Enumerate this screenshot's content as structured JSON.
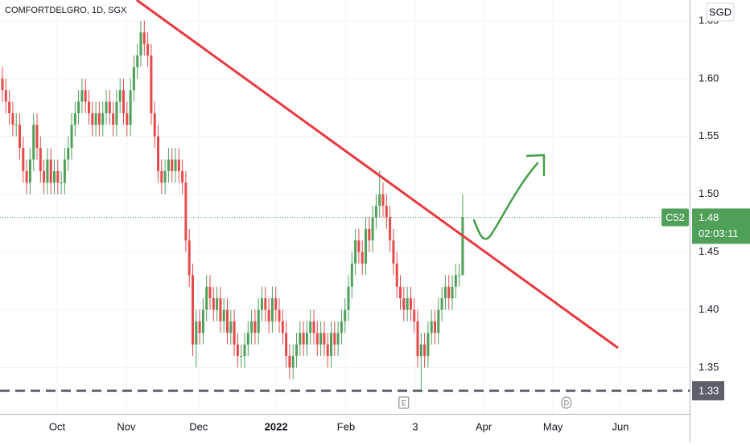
{
  "chart_data": {
    "type": "candlestick",
    "title": "COMFORTDELGRO, 1D, SGX",
    "currency": "SGD",
    "ticker_label": "C52",
    "countdown": "02:03:11",
    "up_color": "#50a05a",
    "down_color": "#e54b4b",
    "grid": true,
    "xlim": [
      -0.7,
      198.6
    ],
    "ylim": [
      1.31,
      1.668
    ],
    "yticks": [
      1.35,
      {
        "value": 1.4,
        "label": "1.40"
      },
      1.45,
      {
        "value": 1.5,
        "label": "1.50"
      },
      1.55,
      {
        "value": 1.6,
        "label": "1.60"
      },
      1.65
    ],
    "xticks": [
      {
        "value": 15.8,
        "label": "Oct"
      },
      {
        "value": 35.8,
        "label": "Nov"
      },
      {
        "value": 56.7,
        "label": "Dec"
      },
      {
        "value": 79.1,
        "label": "2022"
      },
      {
        "value": 99.3,
        "label": "Feb"
      },
      {
        "value": 119.3,
        "label": "3"
      },
      {
        "value": 139.1,
        "label": "Apr"
      },
      {
        "value": 159.1,
        "label": "May"
      },
      {
        "value": 178.6,
        "label": "Jun"
      }
    ],
    "open": [
      1.6,
      1.59,
      1.58,
      1.57,
      1.56,
      1.56,
      1.54,
      1.52,
      1.51,
      1.53,
      1.56,
      1.54,
      1.52,
      1.51,
      1.53,
      1.51,
      1.52,
      1.51,
      1.51,
      1.53,
      1.54,
      1.56,
      1.57,
      1.58,
      1.59,
      1.58,
      1.57,
      1.56,
      1.57,
      1.56,
      1.57,
      1.58,
      1.57,
      1.56,
      1.58,
      1.59,
      1.57,
      1.56,
      1.59,
      1.61,
      1.62,
      1.64,
      1.63,
      1.62,
      1.57,
      1.55,
      1.52,
      1.51,
      1.52,
      1.53,
      1.52,
      1.53,
      1.52,
      1.51,
      1.46,
      1.43,
      1.37,
      1.39,
      1.38,
      1.4,
      1.42,
      1.41,
      1.4,
      1.41,
      1.39,
      1.4,
      1.38,
      1.39,
      1.37,
      1.36,
      1.36,
      1.37,
      1.38,
      1.39,
      1.38,
      1.4,
      1.41,
      1.4,
      1.39,
      1.41,
      1.4,
      1.39,
      1.38,
      1.36,
      1.35,
      1.36,
      1.37,
      1.38,
      1.37,
      1.38,
      1.39,
      1.38,
      1.37,
      1.38,
      1.37,
      1.36,
      1.38,
      1.37,
      1.38,
      1.39,
      1.4,
      1.42,
      1.44,
      1.46,
      1.45,
      1.44,
      1.47,
      1.46,
      1.48,
      1.49,
      1.5,
      1.49,
      1.48,
      1.46,
      1.44,
      1.42,
      1.41,
      1.4,
      1.41,
      1.4,
      1.39,
      1.36,
      1.37,
      1.36,
      1.38,
      1.39,
      1.38,
      1.4,
      1.41,
      1.42,
      1.41,
      1.42,
      1.43,
      1.43
    ],
    "high": [
      1.61,
      1.6,
      1.59,
      1.58,
      1.57,
      1.57,
      1.55,
      1.53,
      1.54,
      1.57,
      1.57,
      1.55,
      1.53,
      1.54,
      1.54,
      1.53,
      1.53,
      1.52,
      1.54,
      1.55,
      1.57,
      1.58,
      1.59,
      1.6,
      1.6,
      1.59,
      1.58,
      1.58,
      1.58,
      1.58,
      1.59,
      1.59,
      1.58,
      1.59,
      1.6,
      1.6,
      1.58,
      1.6,
      1.62,
      1.63,
      1.65,
      1.65,
      1.64,
      1.63,
      1.58,
      1.56,
      1.53,
      1.53,
      1.54,
      1.54,
      1.54,
      1.54,
      1.53,
      1.52,
      1.47,
      1.44,
      1.4,
      1.4,
      1.41,
      1.43,
      1.43,
      1.42,
      1.42,
      1.42,
      1.41,
      1.41,
      1.4,
      1.4,
      1.38,
      1.37,
      1.38,
      1.39,
      1.4,
      1.4,
      1.41,
      1.42,
      1.42,
      1.41,
      1.42,
      1.42,
      1.41,
      1.4,
      1.39,
      1.37,
      1.37,
      1.38,
      1.39,
      1.39,
      1.39,
      1.4,
      1.4,
      1.39,
      1.39,
      1.39,
      1.38,
      1.39,
      1.39,
      1.39,
      1.4,
      1.41,
      1.43,
      1.45,
      1.47,
      1.47,
      1.46,
      1.48,
      1.48,
      1.49,
      1.5,
      1.52,
      1.51,
      1.5,
      1.49,
      1.47,
      1.45,
      1.43,
      1.42,
      1.42,
      1.42,
      1.41,
      1.4,
      1.38,
      1.38,
      1.39,
      1.4,
      1.4,
      1.41,
      1.42,
      1.43,
      1.43,
      1.43,
      1.44,
      1.44,
      1.5
    ],
    "low": [
      1.58,
      1.57,
      1.56,
      1.55,
      1.55,
      1.53,
      1.51,
      1.5,
      1.5,
      1.52,
      1.53,
      1.51,
      1.5,
      1.5,
      1.5,
      1.5,
      1.5,
      1.5,
      1.5,
      1.52,
      1.53,
      1.55,
      1.56,
      1.57,
      1.57,
      1.56,
      1.55,
      1.55,
      1.55,
      1.55,
      1.56,
      1.56,
      1.55,
      1.55,
      1.57,
      1.56,
      1.55,
      1.55,
      1.58,
      1.6,
      1.61,
      1.62,
      1.61,
      1.56,
      1.54,
      1.51,
      1.5,
      1.5,
      1.51,
      1.51,
      1.51,
      1.51,
      1.5,
      1.45,
      1.42,
      1.36,
      1.35,
      1.37,
      1.37,
      1.39,
      1.4,
      1.39,
      1.39,
      1.38,
      1.38,
      1.37,
      1.37,
      1.36,
      1.35,
      1.35,
      1.35,
      1.36,
      1.37,
      1.37,
      1.37,
      1.39,
      1.39,
      1.38,
      1.38,
      1.39,
      1.38,
      1.37,
      1.35,
      1.34,
      1.34,
      1.35,
      1.36,
      1.36,
      1.36,
      1.37,
      1.37,
      1.36,
      1.36,
      1.36,
      1.35,
      1.35,
      1.36,
      1.36,
      1.37,
      1.38,
      1.39,
      1.41,
      1.43,
      1.44,
      1.43,
      1.43,
      1.45,
      1.45,
      1.47,
      1.48,
      1.48,
      1.47,
      1.45,
      1.43,
      1.41,
      1.4,
      1.39,
      1.39,
      1.39,
      1.38,
      1.35,
      1.33,
      1.35,
      1.35,
      1.37,
      1.37,
      1.37,
      1.39,
      1.4,
      1.4,
      1.4,
      1.41,
      1.42,
      1.43
    ],
    "close": [
      1.59,
      1.58,
      1.57,
      1.56,
      1.56,
      1.54,
      1.52,
      1.51,
      1.53,
      1.56,
      1.54,
      1.52,
      1.51,
      1.53,
      1.51,
      1.52,
      1.51,
      1.51,
      1.53,
      1.54,
      1.56,
      1.57,
      1.58,
      1.59,
      1.58,
      1.57,
      1.56,
      1.57,
      1.56,
      1.57,
      1.58,
      1.57,
      1.56,
      1.58,
      1.59,
      1.57,
      1.56,
      1.59,
      1.61,
      1.62,
      1.64,
      1.63,
      1.62,
      1.57,
      1.55,
      1.52,
      1.51,
      1.52,
      1.53,
      1.52,
      1.53,
      1.52,
      1.51,
      1.46,
      1.43,
      1.37,
      1.39,
      1.38,
      1.4,
      1.42,
      1.41,
      1.4,
      1.41,
      1.39,
      1.4,
      1.38,
      1.39,
      1.37,
      1.36,
      1.36,
      1.37,
      1.38,
      1.39,
      1.38,
      1.4,
      1.41,
      1.4,
      1.39,
      1.41,
      1.4,
      1.39,
      1.38,
      1.36,
      1.35,
      1.36,
      1.37,
      1.38,
      1.37,
      1.38,
      1.39,
      1.38,
      1.37,
      1.38,
      1.37,
      1.36,
      1.38,
      1.37,
      1.38,
      1.39,
      1.4,
      1.42,
      1.44,
      1.46,
      1.45,
      1.44,
      1.47,
      1.46,
      1.48,
      1.49,
      1.5,
      1.49,
      1.48,
      1.46,
      1.44,
      1.42,
      1.41,
      1.4,
      1.41,
      1.4,
      1.39,
      1.36,
      1.37,
      1.36,
      1.38,
      1.39,
      1.38,
      1.4,
      1.41,
      1.42,
      1.41,
      1.42,
      1.43,
      1.43,
      1.48
    ],
    "trendline": {
      "x": [
        38.8,
        177.9
      ],
      "y": [
        1.668,
        1.367
      ],
      "color": "#e8383d"
    },
    "hline": {
      "value": 1.33,
      "color": "#5d606b"
    },
    "events": [
      {
        "label": "E",
        "x": 116
      },
      {
        "label": "D",
        "x": 163
      }
    ]
  }
}
